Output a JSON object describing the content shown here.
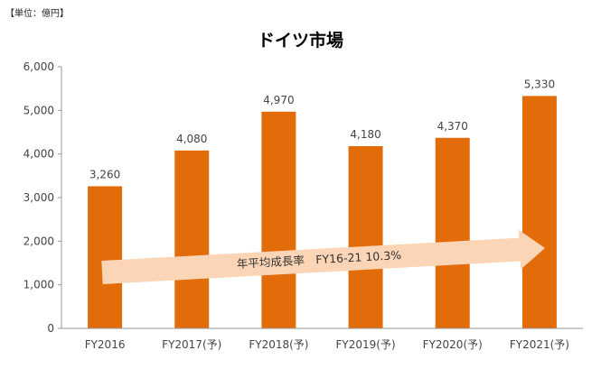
{
  "unit_label": "【単位：億円】",
  "title": "ドイツ市場",
  "colors": {
    "bar": "#e36c0a",
    "arrow": "#fbd5b5",
    "axis": "#999999"
  },
  "chart_data": {
    "type": "bar",
    "title": "ドイツ市場",
    "categories": [
      "FY2016",
      "FY2017(予)",
      "FY2018(予)",
      "FY2019(予)",
      "FY2020(予)",
      "FY2021(予)"
    ],
    "values": [
      3260,
      4080,
      4970,
      4180,
      4370,
      5330
    ],
    "value_labels": [
      "3,260",
      "4,080",
      "4,970",
      "4,180",
      "4,370",
      "5,330"
    ],
    "ylim": [
      0,
      6000
    ],
    "yticks": [
      0,
      1000,
      2000,
      3000,
      4000,
      5000,
      6000
    ],
    "ytick_labels": [
      "0",
      "1,000",
      "2,000",
      "3,000",
      "4,000",
      "5,000",
      "6,000"
    ],
    "grid": false,
    "legend": "none",
    "annotation": "年平均成長率　FY16-21 10.3%"
  }
}
